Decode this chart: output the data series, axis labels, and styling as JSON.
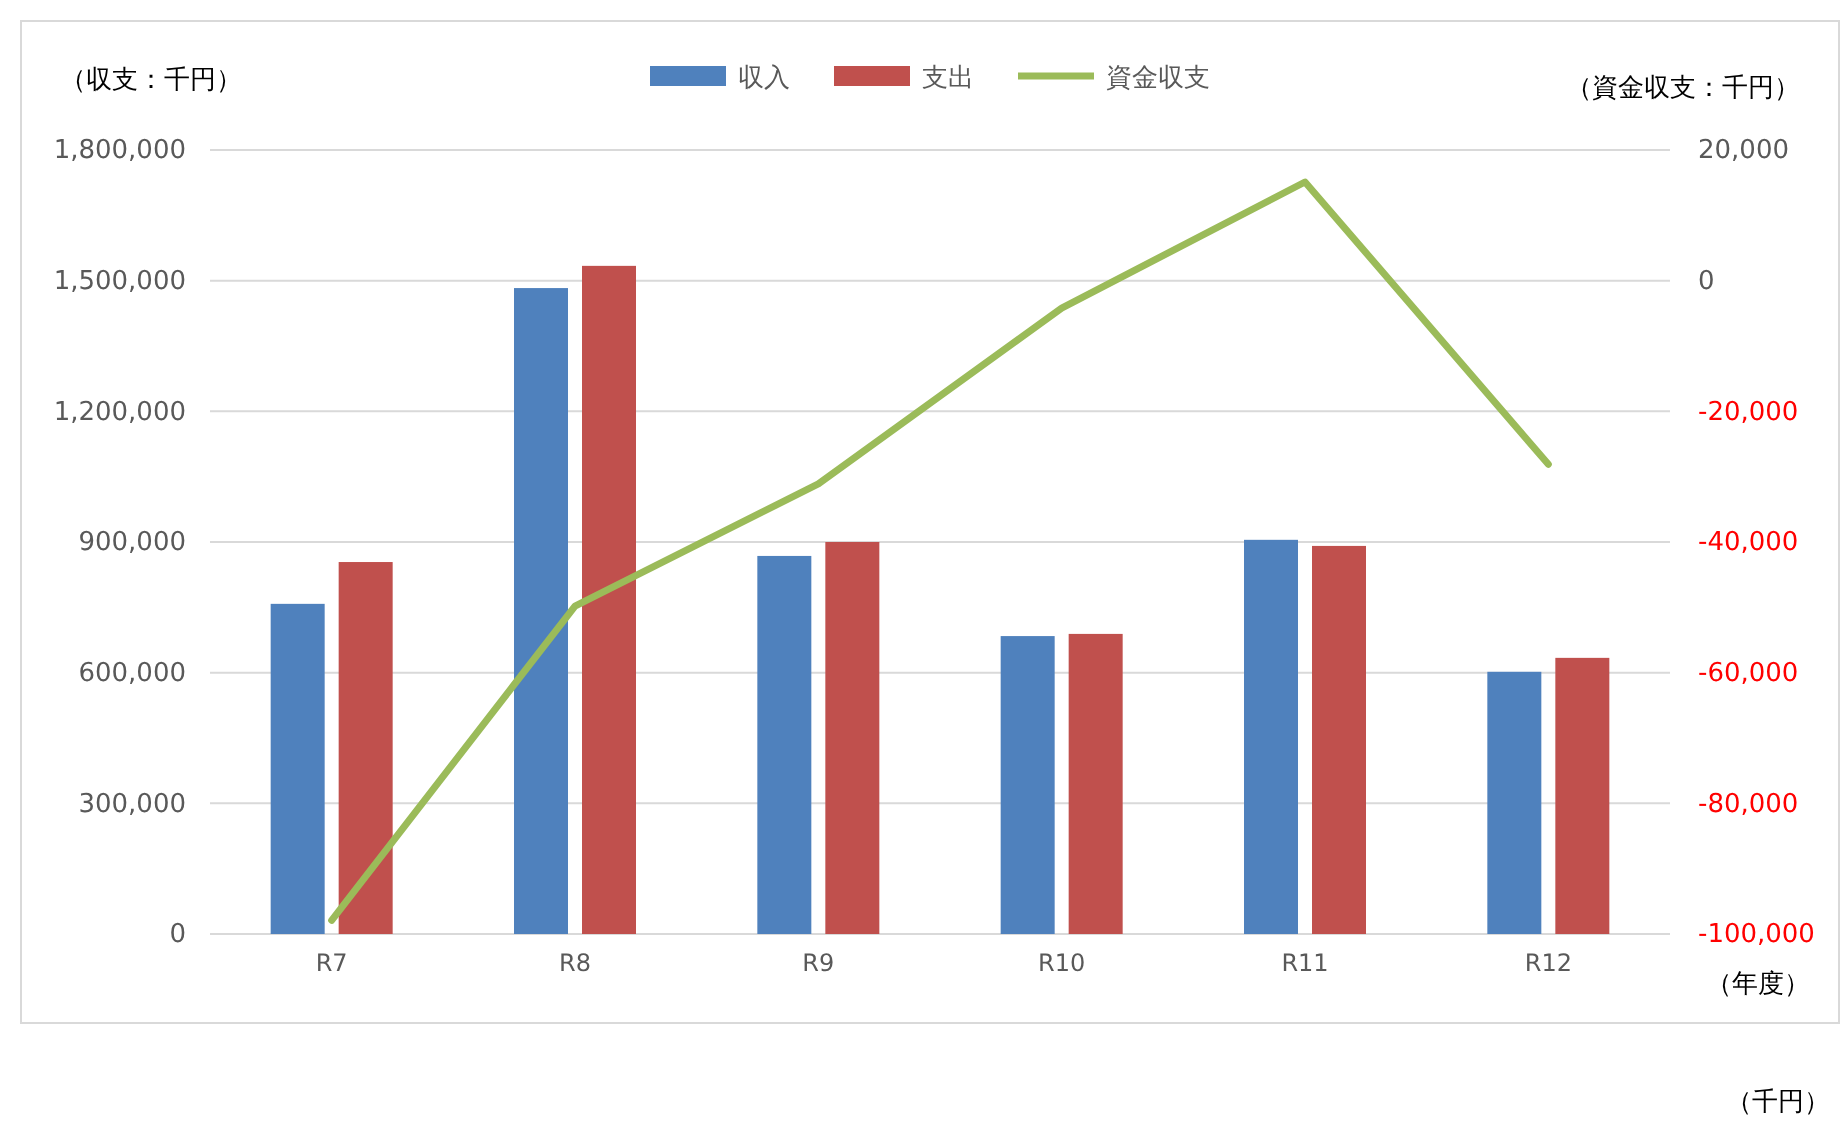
{
  "chart_data": {
    "type": "bar",
    "categories": [
      "R7",
      "R8",
      "R9",
      "R10",
      "R11",
      "R12"
    ],
    "series": [
      {
        "name": "収入",
        "color": "#4f81bd",
        "values": [
          758000,
          1483000,
          868000,
          684000,
          905000,
          602000
        ]
      },
      {
        "name": "支出",
        "color": "#c0504d",
        "values": [
          854000,
          1534000,
          900000,
          689000,
          891000,
          634000
        ]
      },
      {
        "name": "資金収支",
        "type": "line",
        "axis": "y2",
        "color": "#9bbb59",
        "values": [
          -97900,
          -49800,
          -31100,
          -4200,
          15100,
          -28100
        ]
      }
    ],
    "ylabel": "（収支：千円）",
    "y2label": "（資金収支：千円）",
    "xlabel": "（年度）",
    "annotations": [
      "（千円）"
    ],
    "ylim": [
      0,
      1800000
    ],
    "yticks": [
      0,
      {
        "value": 300000,
        "label": "300,000"
      },
      {
        "value": 600000,
        "label": "600,000"
      },
      {
        "value": 900000,
        "label": "900,000"
      },
      {
        "value": 1200000,
        "label": "1,200,000"
      },
      {
        "value": 1500000,
        "label": "1,500,000"
      },
      {
        "value": 1800000,
        "label": "1,800,000"
      }
    ],
    "y2lim": [
      -100000,
      20000
    ],
    "y2ticks": [
      {
        "value": -100000,
        "label": "-100,000"
      },
      {
        "value": -80000,
        "label": "-80,000"
      },
      {
        "value": -60000,
        "label": "-60,000"
      },
      {
        "value": -40000,
        "label": "-40,000"
      },
      {
        "value": -20000,
        "label": "-20,000"
      },
      0,
      {
        "value": 20000,
        "label": "20,000"
      }
    ],
    "grid": "y",
    "legend": "top",
    "marker": "none",
    "line_style": "solid"
  }
}
